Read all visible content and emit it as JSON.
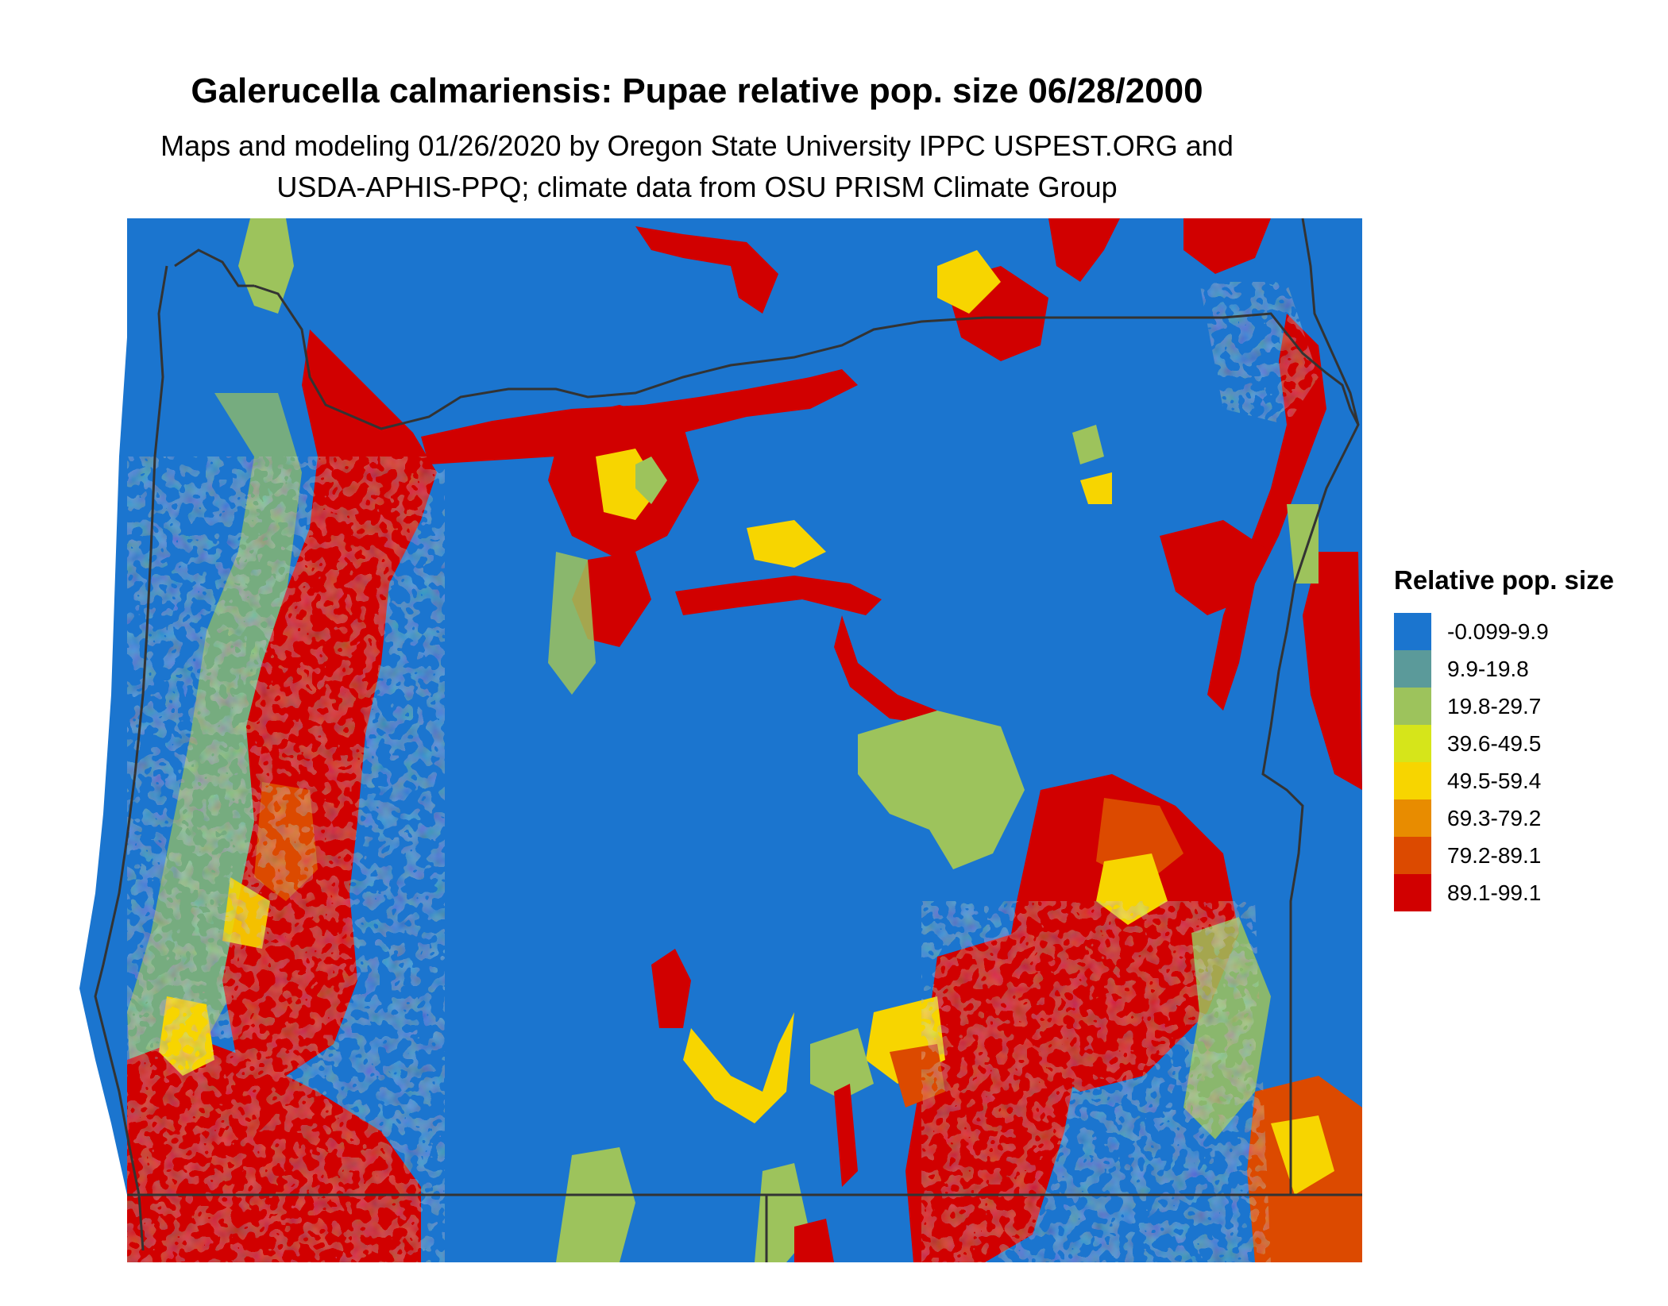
{
  "title": "Galerucella calmariensis: Pupae relative pop. size 06/28/2000",
  "subtitle_line1": "Maps and modeling 01/26/2020 by Oregon State University IPPC USPEST.ORG and",
  "subtitle_line2": "USDA-APHIS-PPQ; climate data from OSU PRISM Climate Group",
  "legend": {
    "title": "Relative pop. size",
    "items": [
      {
        "label": "-0.099-9.9",
        "color": "#1b75cf"
      },
      {
        "label": "9.9-19.8",
        "color": "#5b9a9a"
      },
      {
        "label": "19.8-29.7",
        "color": "#9dc35c"
      },
      {
        "label": "39.6-49.5",
        "color": "#d6e51a"
      },
      {
        "label": "49.5-59.4",
        "color": "#f7d500"
      },
      {
        "label": "69.3-79.2",
        "color": "#e88c00"
      },
      {
        "label": "79.2-89.1",
        "color": "#dc4a00"
      },
      {
        "label": "89.1-99.1",
        "color": "#d10000"
      }
    ]
  },
  "map": {
    "base_color": "#1b75cf",
    "boundary_color": "#333333"
  }
}
